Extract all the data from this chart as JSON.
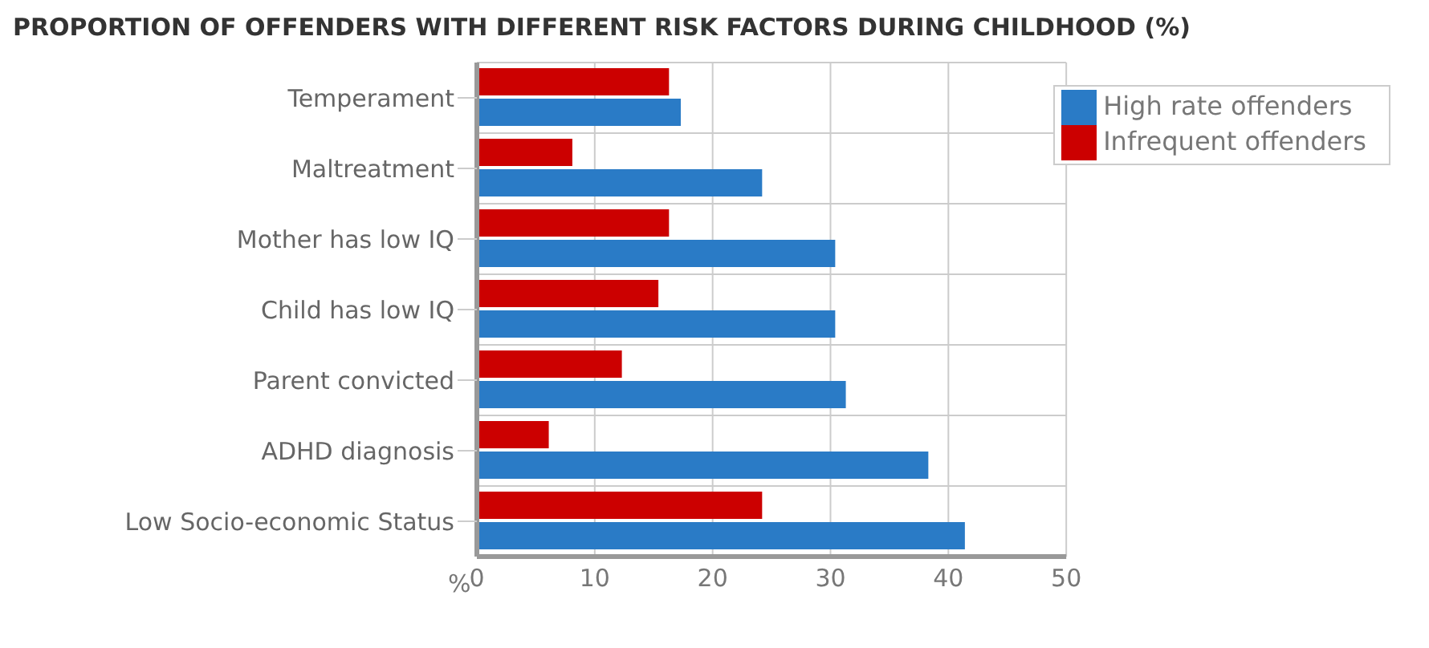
{
  "chart_data": {
    "type": "bar",
    "orientation": "horizontal",
    "title": "PROPORTION OF OFFENDERS WITH DIFFERENT RISK FACTORS DURING CHILDHOOD (%)",
    "xlabel": "%",
    "categories": [
      "Temperament",
      "Maltreatment",
      "Mother has low IQ",
      "Child has low IQ",
      "Parent convicted",
      "ADHD diagnosis",
      "Low Socio-economic Status"
    ],
    "series": [
      {
        "name": "Infrequent offenders",
        "color": "#cc0000",
        "values": [
          16.3,
          8.1,
          16.3,
          15.4,
          12.3,
          6.1,
          24.2
        ]
      },
      {
        "name": "High rate offenders",
        "color": "#2a7bc6",
        "values": [
          17.3,
          24.2,
          30.4,
          30.4,
          31.3,
          38.3,
          41.4
        ]
      }
    ],
    "xlim": [
      0,
      50
    ],
    "xticks": [
      0,
      10,
      20,
      30,
      40,
      50
    ],
    "grid": true,
    "legend": "top right"
  }
}
